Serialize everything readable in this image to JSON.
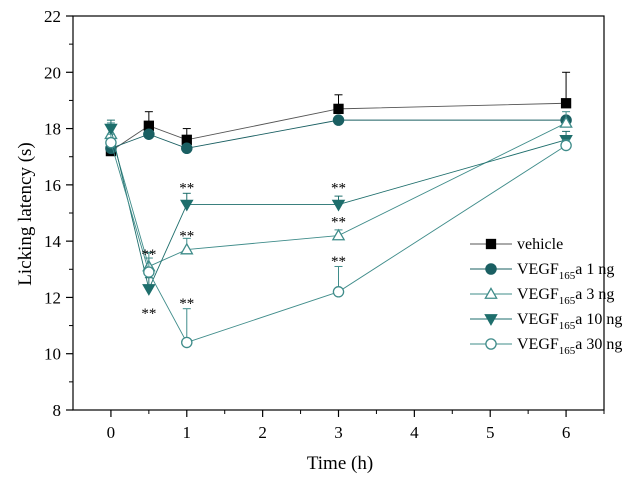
{
  "chart_data": {
    "type": "line",
    "xlabel": "Time (h)",
    "ylabel": "Licking latency (s)",
    "x_ticks": [
      "0",
      "1",
      "2",
      "3",
      "4",
      "5",
      "6"
    ],
    "y_ticks": [
      "8",
      "10",
      "12",
      "14",
      "16",
      "18",
      "20",
      "22"
    ],
    "xlim": [
      -0.5,
      6.5
    ],
    "ylim": [
      8,
      22
    ],
    "legend_position": "right",
    "grid": false,
    "x": [
      0,
      0.5,
      1,
      3,
      6
    ],
    "series": [
      {
        "name": "vehicle",
        "marker": "square",
        "filled": true,
        "color": "#000000",
        "line_color": "#555555",
        "values": [
          17.2,
          18.1,
          17.6,
          18.7,
          18.9
        ],
        "errors": [
          0.0,
          0.5,
          0.4,
          0.5,
          1.1
        ]
      },
      {
        "name": "VEGF165a 1 ng",
        "name_parts": [
          "VEGF",
          "165",
          "a 1 ng"
        ],
        "marker": "circle",
        "filled": true,
        "color": "#1a5f62",
        "line_color": "#1a5f62",
        "values": [
          17.3,
          17.8,
          17.3,
          18.3,
          18.3
        ],
        "errors": [
          0,
          0,
          0,
          0,
          0
        ]
      },
      {
        "name": "VEGF165a 3 ng",
        "name_parts": [
          "VEGF",
          "165",
          "a 3 ng"
        ],
        "marker": "triangle-up",
        "filled": false,
        "color": "#3f8c8a",
        "line_color": "#3f8c8a",
        "values": [
          17.8,
          13.1,
          13.7,
          14.2,
          18.2
        ],
        "errors": [
          0.4,
          0.5,
          0.4,
          0.2,
          0.4
        ]
      },
      {
        "name": "VEGF165a 10 ng",
        "name_parts": [
          "VEGF",
          "165",
          "a 10 ng"
        ],
        "marker": "triangle-down",
        "filled": true,
        "color": "#1e6e6c",
        "line_color": "#1e6e6c",
        "values": [
          18.0,
          12.3,
          15.3,
          15.3,
          17.6
        ],
        "errors": [
          0.3,
          0.4,
          0.4,
          0.3,
          0.3
        ]
      },
      {
        "name": "VEGF165a 30 ng",
        "name_parts": [
          "VEGF",
          "165",
          "a 30 ng"
        ],
        "marker": "circle",
        "filled": false,
        "color": "#3f8c8a",
        "line_color": "#3f8c8a",
        "values": [
          17.5,
          12.9,
          10.4,
          12.2,
          17.4
        ],
        "errors": [
          0.3,
          0.5,
          1.2,
          0.9,
          0.2
        ]
      }
    ],
    "annotations": [
      {
        "text": "**",
        "x": 0.5,
        "y": 13.55
      },
      {
        "text": "**",
        "x": 0.5,
        "y": 11.45
      },
      {
        "text": "**",
        "x": 1,
        "y": 15.9
      },
      {
        "text": "**",
        "x": 1,
        "y": 14.2
      },
      {
        "text": "**",
        "x": 1,
        "y": 11.8
      },
      {
        "text": "**",
        "x": 3,
        "y": 15.9
      },
      {
        "text": "**",
        "x": 3,
        "y": 14.7
      },
      {
        "text": "**",
        "x": 3,
        "y": 13.3
      }
    ]
  }
}
